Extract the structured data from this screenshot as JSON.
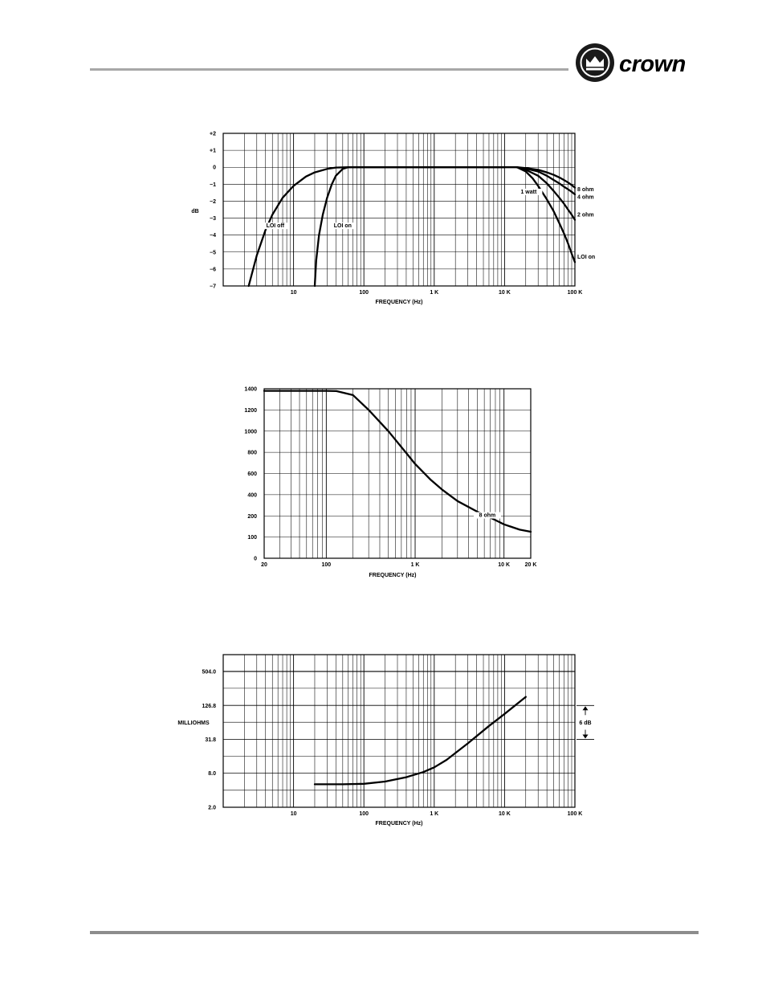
{
  "brand": {
    "logo_text": "crown",
    "logo_icon": "crown-icon"
  },
  "chart_data": [
    {
      "type": "line",
      "xscale": "log",
      "xlim": [
        1,
        100000
      ],
      "ylim": [
        -7,
        2
      ],
      "ylabel": "dB",
      "xlabel": "FREQUENCY (Hz)",
      "xticks": [
        {
          "v": 10,
          "label": "10"
        },
        {
          "v": 100,
          "label": "100"
        },
        {
          "v": 1000,
          "label": "1 K"
        },
        {
          "v": 10000,
          "label": "10 K"
        },
        {
          "v": 100000,
          "label": "100 K"
        }
      ],
      "yticks": [
        {
          "v": 2,
          "label": "+2"
        },
        {
          "v": 1,
          "label": "+1"
        },
        {
          "v": 0,
          "label": "0"
        },
        {
          "v": -1,
          "label": "−1"
        },
        {
          "v": -2,
          "label": "−2"
        },
        {
          "v": -3,
          "label": "−3"
        },
        {
          "v": -4,
          "label": "−4"
        },
        {
          "v": -5,
          "label": "−5"
        },
        {
          "v": -6,
          "label": "−6"
        },
        {
          "v": -7,
          "label": "−7"
        }
      ],
      "series": [
        {
          "name": "LOI off",
          "x": [
            2.3,
            3,
            4,
            5,
            7,
            10,
            15,
            20,
            30,
            40,
            60,
            100,
            10000,
            15000
          ],
          "y": [
            -7,
            -5.2,
            -3.7,
            -2.8,
            -1.8,
            -1.1,
            -0.55,
            -0.3,
            -0.1,
            -0.02,
            0,
            0,
            0,
            0
          ]
        },
        {
          "name": "LOI on",
          "x": [
            20,
            21,
            23,
            26,
            30,
            35,
            40,
            50,
            60,
            100,
            10000
          ],
          "y": [
            -7,
            -5.5,
            -4,
            -2.8,
            -1.8,
            -1,
            -0.5,
            -0.1,
            0,
            0,
            0
          ]
        },
        {
          "name": "8 ohm",
          "x": [
            15000,
            20000,
            30000,
            40000,
            50000,
            60000,
            70000,
            80000,
            90000,
            100000
          ],
          "y": [
            0,
            -0.05,
            -0.15,
            -0.3,
            -0.45,
            -0.6,
            -0.75,
            -0.9,
            -1.05,
            -1.2
          ]
        },
        {
          "name": "4 ohm",
          "x": [
            15000,
            20000,
            30000,
            40000,
            50000,
            60000,
            70000,
            80000,
            90000,
            100000
          ],
          "y": [
            0,
            -0.08,
            -0.25,
            -0.5,
            -0.75,
            -0.95,
            -1.15,
            -1.3,
            -1.45,
            -1.6
          ]
        },
        {
          "name": "2 ohm",
          "x": [
            15000,
            20000,
            30000,
            40000,
            50000,
            60000,
            70000,
            80000,
            90000,
            100000
          ],
          "y": [
            0,
            -0.15,
            -0.5,
            -0.95,
            -1.4,
            -1.8,
            -2.15,
            -2.5,
            -2.8,
            -3.1
          ]
        },
        {
          "name": "LOI on",
          "x": [
            15000,
            20000,
            25000,
            30000,
            40000,
            50000,
            60000,
            70000,
            80000,
            90000,
            100000
          ],
          "y": [
            0,
            -0.25,
            -0.65,
            -1.1,
            -1.9,
            -2.6,
            -3.3,
            -3.9,
            -4.5,
            -5.1,
            -5.6
          ]
        }
      ],
      "annotations": [
        {
          "text": "LOI  off",
          "x": 5.5,
          "y": -3.55
        },
        {
          "text": "LOI  on",
          "x": 50,
          "y": -3.55
        },
        {
          "text": "1 watt",
          "x": 22000,
          "y": -1.55
        },
        {
          "text": "8 ohm",
          "x": 100000,
          "y": -1.4
        },
        {
          "text": "4 ohm",
          "x": 100000,
          "y": -1.85
        },
        {
          "text": "2 ohm",
          "x": 100000,
          "y": -2.9
        },
        {
          "text": "LOI on",
          "x": 100000,
          "y": -5.4
        }
      ]
    },
    {
      "type": "line",
      "xscale": "log",
      "xlim": [
        20,
        20000
      ],
      "ylim": [
        0,
        1400
      ],
      "xlabel": "FREQUENCY (Hz)",
      "xticks": [
        {
          "v": 20,
          "label": "20"
        },
        {
          "v": 100,
          "label": "100"
        },
        {
          "v": 1000,
          "label": "1 K"
        },
        {
          "v": 10000,
          "label": "10 K"
        },
        {
          "v": 20000,
          "label": "20 K"
        }
      ],
      "yticks": [
        {
          "v": 1400,
          "label": "1400"
        },
        {
          "v": 1200,
          "label": "1200"
        },
        {
          "v": 1000,
          "label": "1000"
        },
        {
          "v": 800,
          "label": "800"
        },
        {
          "v": 600,
          "label": "600"
        },
        {
          "v": 400,
          "label": "400"
        },
        {
          "v": 200,
          "label": "200"
        },
        {
          "v": 100,
          "label": "100"
        },
        {
          "v": 0,
          "label": "0"
        }
      ],
      "series": [
        {
          "name": "8 ohm",
          "x": [
            20,
            50,
            100,
            130,
            200,
            300,
            500,
            800,
            1000,
            1500,
            2000,
            3000,
            5000,
            8000,
            10000,
            15000,
            20000
          ],
          "y": [
            1380,
            1380,
            1380,
            1378,
            1340,
            1200,
            1000,
            790,
            690,
            540,
            450,
            340,
            240,
            180,
            160,
            135,
            125
          ]
        }
      ],
      "annotations": [
        {
          "text": "8 ohm",
          "x": 6500,
          "y": 195
        }
      ]
    },
    {
      "type": "line",
      "xscale": "log",
      "yscale": "log",
      "xlim": [
        1,
        100000
      ],
      "ylim": [
        2,
        1008
      ],
      "ylabel": "MILLIOHMS",
      "xlabel": "FREQUENCY (Hz)",
      "xticks": [
        {
          "v": 10,
          "label": "10"
        },
        {
          "v": 100,
          "label": "100"
        },
        {
          "v": 1000,
          "label": "1 K"
        },
        {
          "v": 10000,
          "label": "10 K"
        },
        {
          "v": 100000,
          "label": "100 K"
        }
      ],
      "yticks": [
        {
          "v": 504,
          "label": "504.0"
        },
        {
          "v": 126.8,
          "label": "126.8"
        },
        {
          "v": 31.8,
          "label": "31.8"
        },
        {
          "v": 8,
          "label": "8.0"
        },
        {
          "v": 2,
          "label": "2.0"
        }
      ],
      "series": [
        {
          "name": "",
          "x": [
            20,
            50,
            100,
            200,
            400,
            700,
            1000,
            1500,
            3000,
            6000,
            10000,
            20000
          ],
          "y": [
            5.1,
            5.1,
            5.2,
            5.7,
            6.8,
            8.4,
            10.2,
            13.8,
            27,
            55,
            90,
            180
          ]
        }
      ],
      "annotations": [
        {
          "text": "6 dB"
        }
      ]
    }
  ]
}
